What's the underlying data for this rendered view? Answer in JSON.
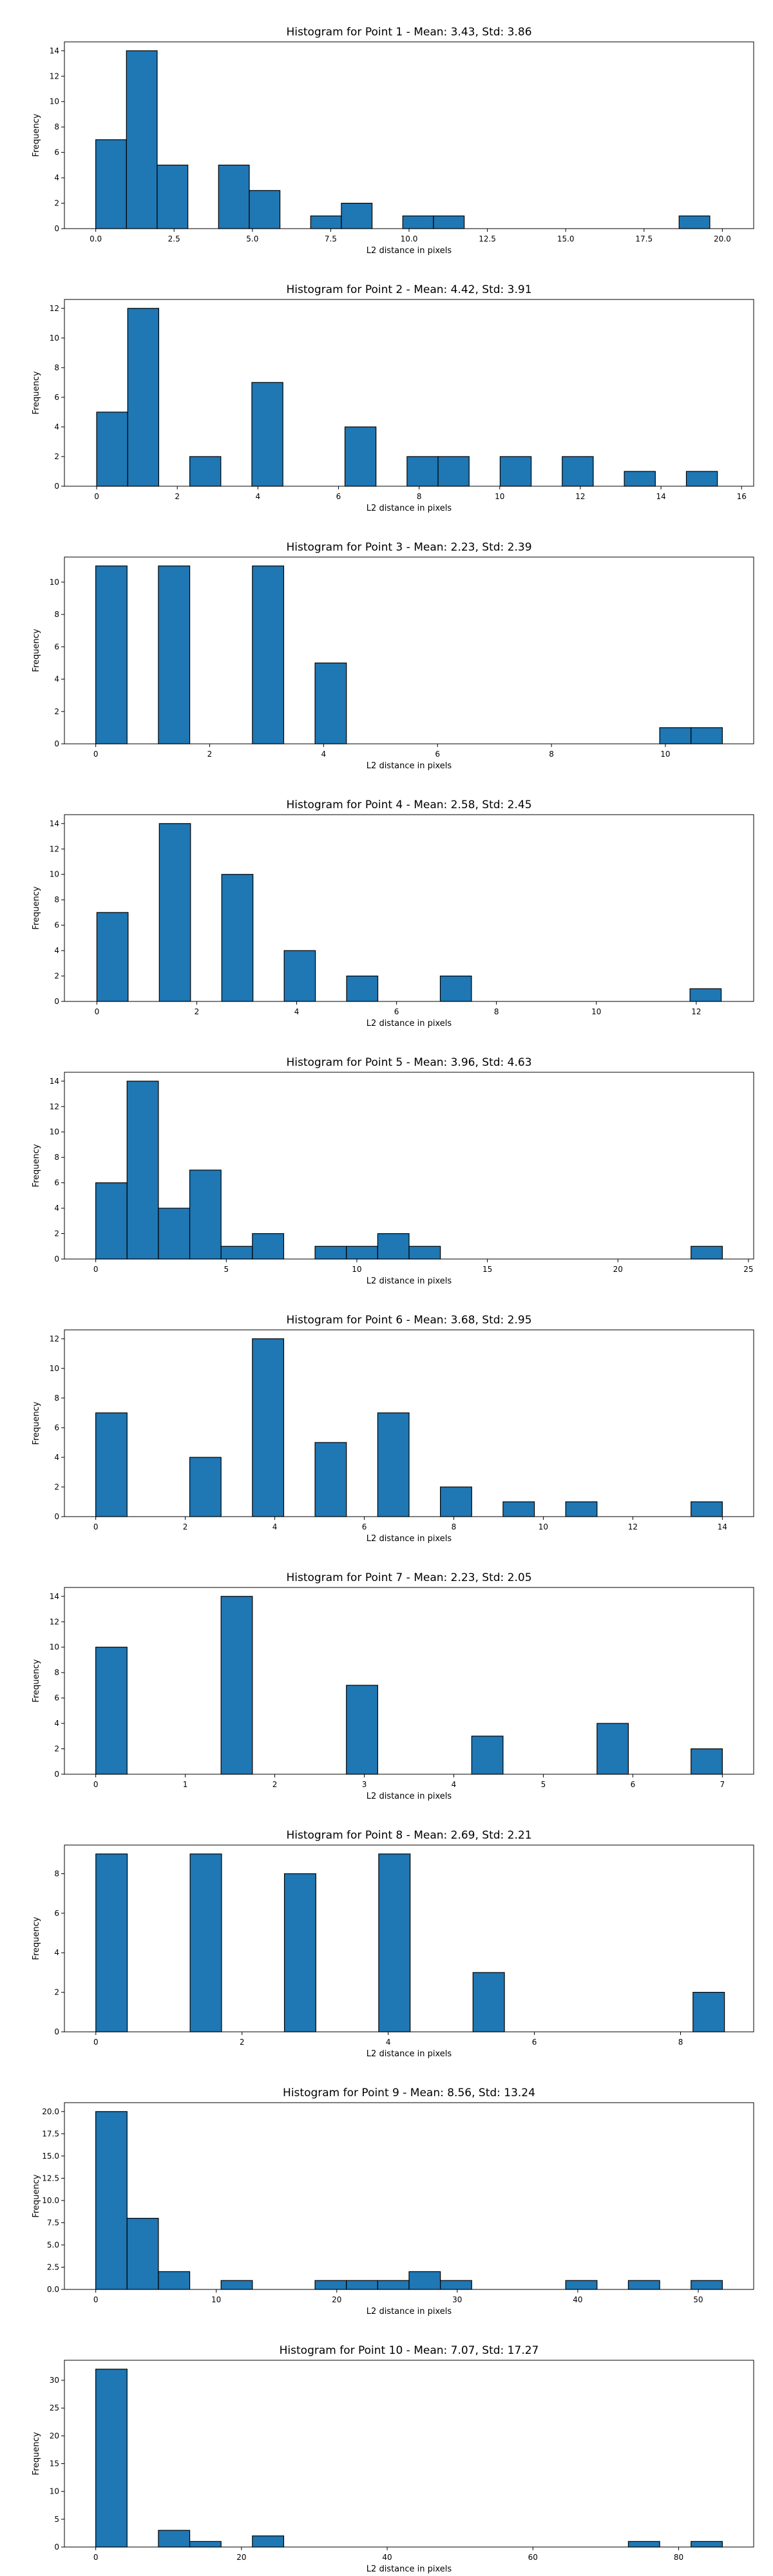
{
  "style": {
    "bar_color": "#1f77b4",
    "edge_color": "#000000"
  },
  "chart_data": [
    {
      "type": "bar",
      "title": "Histogram for Point 1 - Mean: 3.43, Std: 3.86",
      "xlabel": "L2 distance in pixels",
      "ylabel": "Frequency",
      "xlim": [
        -1,
        21
      ],
      "ylim": [
        0,
        14.7
      ],
      "xticks": [
        0.0,
        2.5,
        5.0,
        7.5,
        10.0,
        12.5,
        15.0,
        17.5,
        20.0
      ],
      "xtick_labels": [
        "0.0",
        "2.5",
        "5.0",
        "7.5",
        "10.0",
        "12.5",
        "15.0",
        "17.5",
        "20.0"
      ],
      "yticks": [
        0,
        2,
        4,
        6,
        8,
        10,
        12,
        14
      ],
      "bin_edges": [
        0.0,
        0.98,
        1.96,
        2.94,
        3.92,
        4.9,
        5.88,
        6.86,
        7.84,
        8.82,
        9.8,
        10.78,
        11.76,
        12.74,
        13.72,
        14.7,
        15.68,
        16.66,
        17.64,
        18.62,
        19.6
      ],
      "counts": [
        7,
        14,
        5,
        0,
        5,
        3,
        0,
        1,
        2,
        0,
        1,
        1,
        0,
        0,
        0,
        0,
        0,
        0,
        0,
        1
      ]
    },
    {
      "type": "bar",
      "title": "Histogram for Point 2 - Mean: 4.42, Std: 3.91",
      "xlabel": "L2 distance in pixels",
      "ylabel": "Frequency",
      "xlim": [
        -0.8,
        16.3
      ],
      "ylim": [
        0,
        12.6
      ],
      "xticks": [
        0,
        2,
        4,
        6,
        8,
        10,
        12,
        14,
        16
      ],
      "xtick_labels": [
        "0",
        "2",
        "4",
        "6",
        "8",
        "10",
        "12",
        "14",
        "16"
      ],
      "yticks": [
        0,
        2,
        4,
        6,
        8,
        10,
        12
      ],
      "bin_edges": [
        0.0,
        0.77,
        1.54,
        2.31,
        3.08,
        3.85,
        4.62,
        5.39,
        6.16,
        6.93,
        7.7,
        8.47,
        9.24,
        10.01,
        10.78,
        11.55,
        12.32,
        13.09,
        13.86,
        14.63,
        15.4
      ],
      "counts": [
        5,
        12,
        0,
        2,
        0,
        7,
        0,
        0,
        4,
        0,
        2,
        2,
        0,
        2,
        0,
        2,
        0,
        1,
        0,
        1
      ]
    },
    {
      "type": "bar",
      "title": "Histogram for Point 3 - Mean: 2.23, Std: 2.39",
      "xlabel": "L2 distance in pixels",
      "ylabel": "Frequency",
      "xlim": [
        -0.55,
        11.55
      ],
      "ylim": [
        0,
        11.55
      ],
      "xticks": [
        0,
        2,
        4,
        6,
        8,
        10
      ],
      "xtick_labels": [
        "0",
        "2",
        "4",
        "6",
        "8",
        "10"
      ],
      "yticks": [
        0,
        2,
        4,
        6,
        8,
        10
      ],
      "bin_edges": [
        0.0,
        0.55,
        1.1,
        1.65,
        2.2,
        2.75,
        3.3,
        3.85,
        4.4,
        4.95,
        5.5,
        6.05,
        6.6,
        7.15,
        7.7,
        8.25,
        8.8,
        9.35,
        9.9,
        10.45,
        11.0
      ],
      "counts": [
        11,
        0,
        11,
        0,
        0,
        11,
        0,
        5,
        0,
        0,
        0,
        0,
        0,
        0,
        0,
        0,
        0,
        0,
        1,
        1
      ]
    },
    {
      "type": "bar",
      "title": "Histogram for Point 4 - Mean: 2.58, Std: 2.45",
      "xlabel": "L2 distance in pixels",
      "ylabel": "Frequency",
      "xlim": [
        -0.65,
        13.15
      ],
      "ylim": [
        0,
        14.7
      ],
      "xticks": [
        0,
        2,
        4,
        6,
        8,
        10,
        12
      ],
      "xtick_labels": [
        "0",
        "2",
        "4",
        "6",
        "8",
        "10",
        "12"
      ],
      "yticks": [
        0,
        2,
        4,
        6,
        8,
        10,
        12,
        14
      ],
      "bin_edges": [
        0.0,
        0.625,
        1.25,
        1.875,
        2.5,
        3.125,
        3.75,
        4.375,
        5.0,
        5.625,
        6.25,
        6.875,
        7.5,
        8.125,
        8.75,
        9.375,
        10.0,
        10.625,
        11.25,
        11.875,
        12.5
      ],
      "counts": [
        7,
        0,
        14,
        0,
        10,
        0,
        4,
        0,
        2,
        0,
        0,
        2,
        0,
        0,
        0,
        0,
        0,
        0,
        0,
        1
      ]
    },
    {
      "type": "bar",
      "title": "Histogram for Point 5 - Mean: 3.96, Std: 4.63",
      "xlabel": "L2 distance in pixels",
      "ylabel": "Frequency",
      "xlim": [
        -1.2,
        25.2
      ],
      "ylim": [
        0,
        14.7
      ],
      "xticks": [
        0,
        5,
        10,
        15,
        20,
        25
      ],
      "xtick_labels": [
        "0",
        "5",
        "10",
        "15",
        "20",
        "25"
      ],
      "yticks": [
        0,
        2,
        4,
        6,
        8,
        10,
        12,
        14
      ],
      "bin_edges": [
        0.0,
        1.2,
        2.4,
        3.6,
        4.8,
        6.0,
        7.2,
        8.4,
        9.6,
        10.8,
        12.0,
        13.2,
        14.4,
        15.6,
        16.8,
        18.0,
        19.2,
        20.4,
        21.6,
        22.8,
        24.0
      ],
      "counts": [
        6,
        14,
        4,
        7,
        1,
        2,
        0,
        1,
        1,
        2,
        1,
        0,
        0,
        0,
        0,
        0,
        0,
        0,
        0,
        1
      ]
    },
    {
      "type": "bar",
      "title": "Histogram for Point 6 - Mean: 3.68, Std: 2.95",
      "xlabel": "L2 distance in pixels",
      "ylabel": "Frequency",
      "xlim": [
        -0.7,
        14.7
      ],
      "ylim": [
        0,
        12.6
      ],
      "xticks": [
        0,
        2,
        4,
        6,
        8,
        10,
        12,
        14
      ],
      "xtick_labels": [
        "0",
        "2",
        "4",
        "6",
        "8",
        "10",
        "12",
        "14"
      ],
      "yticks": [
        0,
        2,
        4,
        6,
        8,
        10,
        12
      ],
      "bin_edges": [
        0.0,
        0.7,
        1.4,
        2.1,
        2.8,
        3.5,
        4.2,
        4.9,
        5.6,
        6.3,
        7.0,
        7.7,
        8.4,
        9.1,
        9.8,
        10.5,
        11.2,
        11.9,
        12.6,
        13.3,
        14.0
      ],
      "counts": [
        7,
        0,
        0,
        4,
        0,
        12,
        0,
        5,
        0,
        7,
        0,
        2,
        0,
        1,
        0,
        1,
        0,
        0,
        0,
        1
      ]
    },
    {
      "type": "bar",
      "title": "Histogram for Point 7 - Mean: 2.23, Std: 2.05",
      "xlabel": "L2 distance in pixels",
      "ylabel": "Frequency",
      "xlim": [
        -0.35,
        7.35
      ],
      "ylim": [
        0,
        14.7
      ],
      "xticks": [
        0,
        1,
        2,
        3,
        4,
        5,
        6,
        7
      ],
      "xtick_labels": [
        "0",
        "1",
        "2",
        "3",
        "4",
        "5",
        "6",
        "7"
      ],
      "yticks": [
        0,
        2,
        4,
        6,
        8,
        10,
        12,
        14
      ],
      "bin_edges": [
        0.0,
        0.35,
        0.7,
        1.05,
        1.4,
        1.75,
        2.1,
        2.45,
        2.8,
        3.15,
        3.5,
        3.85,
        4.2,
        4.55,
        4.9,
        5.25,
        5.6,
        5.95,
        6.3,
        6.65,
        7.0
      ],
      "counts": [
        10,
        0,
        0,
        0,
        14,
        0,
        0,
        0,
        7,
        0,
        0,
        0,
        3,
        0,
        0,
        0,
        4,
        0,
        0,
        2
      ]
    },
    {
      "type": "bar",
      "title": "Histogram for Point 8 - Mean: 2.69, Std: 2.21",
      "xlabel": "L2 distance in pixels",
      "ylabel": "Frequency",
      "xlim": [
        -0.43,
        9.0
      ],
      "ylim": [
        0,
        9.45
      ],
      "xticks": [
        0,
        2,
        4,
        6,
        8
      ],
      "xtick_labels": [
        "0",
        "2",
        "4",
        "6",
        "8"
      ],
      "yticks": [
        0,
        2,
        4,
        6,
        8
      ],
      "bin_edges": [
        0.0,
        0.43,
        0.86,
        1.29,
        1.72,
        2.15,
        2.58,
        3.01,
        3.44,
        3.87,
        4.3,
        4.73,
        5.16,
        5.59,
        6.02,
        6.45,
        6.88,
        7.31,
        7.74,
        8.17,
        8.6
      ],
      "counts": [
        9,
        0,
        0,
        9,
        0,
        0,
        8,
        0,
        0,
        9,
        0,
        0,
        3,
        0,
        0,
        0,
        0,
        0,
        0,
        2
      ]
    },
    {
      "type": "bar",
      "title": "Histogram for Point 9 - Mean: 8.56, Std: 13.24",
      "xlabel": "L2 distance in pixels",
      "ylabel": "Frequency",
      "xlim": [
        -2.6,
        54.6
      ],
      "ylim": [
        0,
        21
      ],
      "xticks": [
        0,
        10,
        20,
        30,
        40,
        50
      ],
      "xtick_labels": [
        "0",
        "10",
        "20",
        "30",
        "40",
        "50"
      ],
      "yticks": [
        0,
        2.5,
        5,
        7.5,
        10,
        12.5,
        15,
        17.5,
        20
      ],
      "ytick_labels": [
        "0.0",
        "2.5",
        "5.0",
        "7.5",
        "10.0",
        "12.5",
        "15.0",
        "17.5",
        "20.0"
      ],
      "bin_edges": [
        0.0,
        2.6,
        5.2,
        7.8,
        10.4,
        13.0,
        15.6,
        18.2,
        20.8,
        23.4,
        26.0,
        28.6,
        31.2,
        33.8,
        36.4,
        39.0,
        41.6,
        44.2,
        46.8,
        49.4,
        52.0
      ],
      "counts": [
        20,
        8,
        2,
        0,
        1,
        0,
        0,
        1,
        1,
        1,
        2,
        1,
        0,
        0,
        0,
        1,
        0,
        1,
        0,
        1
      ]
    },
    {
      "type": "bar",
      "title": "Histogram for Point 10 - Mean: 7.07, Std: 17.27",
      "xlabel": "L2 distance in pixels",
      "ylabel": "Frequency",
      "xlim": [
        -4.3,
        90.3
      ],
      "ylim": [
        0,
        33.6
      ],
      "xticks": [
        0,
        20,
        40,
        60,
        80
      ],
      "xtick_labels": [
        "0",
        "20",
        "40",
        "60",
        "80"
      ],
      "yticks": [
        0,
        5,
        10,
        15,
        20,
        25,
        30
      ],
      "bin_edges": [
        0.0,
        4.3,
        8.6,
        12.9,
        17.2,
        21.5,
        25.8,
        30.1,
        34.4,
        38.7,
        43.0,
        47.3,
        51.6,
        55.9,
        60.2,
        64.5,
        68.8,
        73.1,
        77.4,
        81.7,
        86.0
      ],
      "counts": [
        32,
        0,
        3,
        1,
        0,
        2,
        0,
        0,
        0,
        0,
        0,
        0,
        0,
        0,
        0,
        0,
        0,
        1,
        0,
        1
      ]
    }
  ]
}
